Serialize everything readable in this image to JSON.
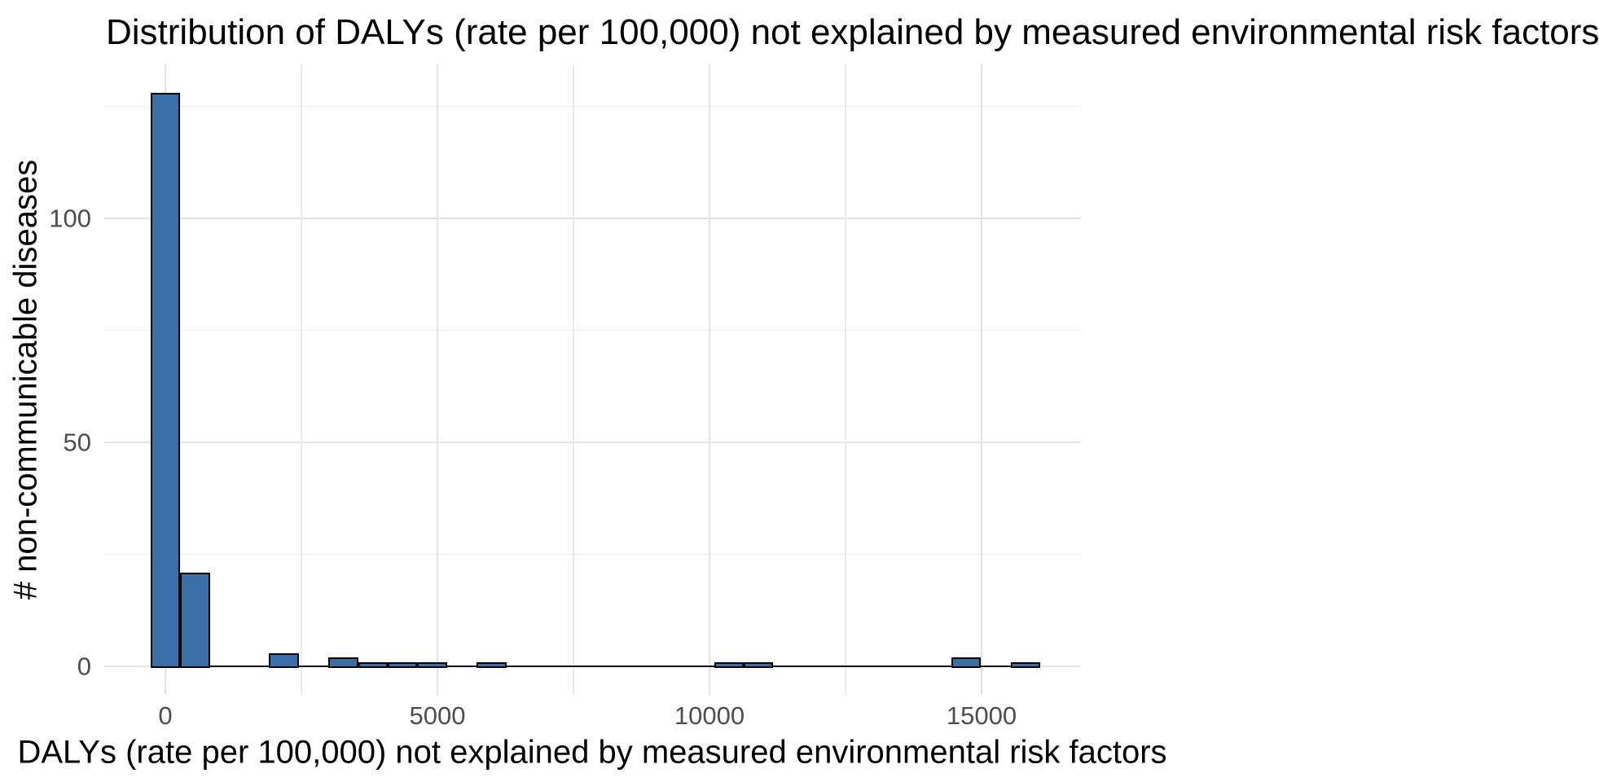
{
  "chart_data": {
    "type": "bar",
    "subtype": "histogram",
    "title": "Distribution of DALYs (rate per 100,000) not explained by measured environmental risk factors",
    "xlabel": "DALYs (rate per 100,000) not explained by measured environmental risk factors",
    "ylabel": "# non-communicable diseases",
    "x_tick_values": [
      0,
      5000,
      10000,
      15000
    ],
    "x_tick_labels": [
      "0",
      "5000",
      "10000",
      "15000"
    ],
    "x_minor_tick_values": [
      2500,
      7500,
      12500
    ],
    "y_tick_values": [
      0,
      50,
      100
    ],
    "y_tick_labels": [
      "0",
      "50",
      "100"
    ],
    "y_minor_tick_values": [
      25,
      75,
      125
    ],
    "xlim": [
      -1090,
      16890
    ],
    "ylim": [
      -6.5,
      134.5
    ],
    "bin_width": 545,
    "bars": [
      {
        "center": 0,
        "count": 128
      },
      {
        "center": 545,
        "count": 21
      },
      {
        "center": 2180,
        "count": 3
      },
      {
        "center": 3270,
        "count": 2
      },
      {
        "center": 3815,
        "count": 1
      },
      {
        "center": 4360,
        "count": 1
      },
      {
        "center": 4905,
        "count": 1
      },
      {
        "center": 5995,
        "count": 1
      },
      {
        "center": 10355,
        "count": 1
      },
      {
        "center": 10900,
        "count": 1
      },
      {
        "center": 14715,
        "count": 2
      },
      {
        "center": 15805,
        "count": 1
      }
    ],
    "baseline_extent": [
      -272.5,
      16077.5
    ],
    "grid": true,
    "legend_position": "none",
    "colors": {
      "bar_fill": "#3a70a8",
      "bar_stroke": "#000000",
      "grid_major": "#e3e3e3",
      "grid_minor": "#ebebeb",
      "tick_label_color": "#4d4d4d",
      "title_color": "#000000",
      "background": "#ffffff"
    }
  }
}
